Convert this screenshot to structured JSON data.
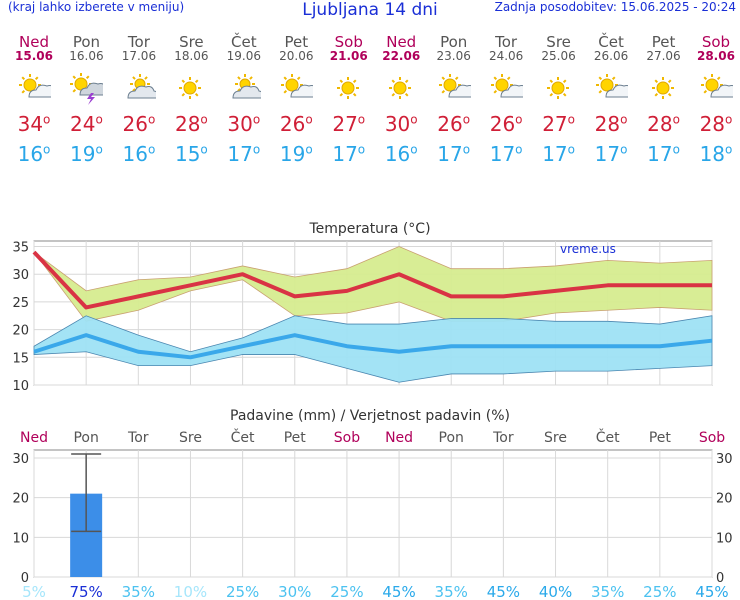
{
  "header": {
    "left_note": "(kraj lahko izberete v meniju)",
    "title": "Ljubljana 14 dni",
    "updated": "Zadnja posodobitev: 15.06.2025 - 20:24"
  },
  "days": [
    {
      "name": "Ned",
      "date": "15.06",
      "weekend": true,
      "icon": "partly-sunny-icon",
      "max": "34",
      "min": "16"
    },
    {
      "name": "Pon",
      "date": "16.06",
      "weekend": false,
      "icon": "thunderstorm-sun-icon",
      "max": "24",
      "min": "19"
    },
    {
      "name": "Tor",
      "date": "17.06",
      "weekend": false,
      "icon": "cloudy-sun-icon",
      "max": "26",
      "min": "16"
    },
    {
      "name": "Sre",
      "date": "18.06",
      "weekend": false,
      "icon": "sunny-icon",
      "max": "28",
      "min": "15"
    },
    {
      "name": "Čet",
      "date": "19.06",
      "weekend": false,
      "icon": "cloudy-sun-icon",
      "max": "30",
      "min": "17"
    },
    {
      "name": "Pet",
      "date": "20.06",
      "weekend": false,
      "icon": "partly-sunny-icon",
      "max": "26",
      "min": "19"
    },
    {
      "name": "Sob",
      "date": "21.06",
      "weekend": true,
      "icon": "sunny-icon",
      "max": "27",
      "min": "17"
    },
    {
      "name": "Ned",
      "date": "22.06",
      "weekend": true,
      "icon": "sunny-icon",
      "max": "30",
      "min": "16"
    },
    {
      "name": "Pon",
      "date": "23.06",
      "weekend": false,
      "icon": "partly-sunny-icon",
      "max": "26",
      "min": "17"
    },
    {
      "name": "Tor",
      "date": "24.06",
      "weekend": false,
      "icon": "partly-sunny-icon",
      "max": "26",
      "min": "17"
    },
    {
      "name": "Sre",
      "date": "25.06",
      "weekend": false,
      "icon": "sunny-icon",
      "max": "27",
      "min": "17"
    },
    {
      "name": "Čet",
      "date": "26.06",
      "weekend": false,
      "icon": "partly-sunny-icon",
      "max": "28",
      "min": "17"
    },
    {
      "name": "Pet",
      "date": "27.06",
      "weekend": false,
      "icon": "sunny-icon",
      "max": "28",
      "min": "17"
    },
    {
      "name": "Sob",
      "date": "28.06",
      "weekend": true,
      "icon": "partly-sunny-icon",
      "max": "28",
      "min": "18"
    }
  ],
  "degree_sign": "o",
  "chart_data": [
    {
      "type": "line",
      "title": "Temperatura (°C)",
      "watermark": "vreme.us",
      "x": [
        "Ned",
        "Pon",
        "Tor",
        "Sre",
        "Čet",
        "Pet",
        "Sob",
        "Ned",
        "Pon",
        "Tor",
        "Sre",
        "Čet",
        "Pet",
        "Sob"
      ],
      "ylim": [
        10,
        36
      ],
      "yticks": [
        10,
        15,
        20,
        25,
        30,
        35
      ],
      "grid": true,
      "series": [
        {
          "values": [
            34,
            24,
            26,
            28,
            30,
            26,
            27,
            30,
            26,
            26,
            27,
            28,
            28,
            28
          ],
          "color": "#d93344"
        },
        {
          "values": [
            16,
            19,
            16,
            15,
            17,
            19,
            17,
            16,
            17,
            17,
            17,
            17,
            17,
            18
          ],
          "color": "#3aa8ea"
        }
      ],
      "bands": [
        {
          "upper": [
            34,
            27,
            29,
            29.5,
            31.5,
            29.5,
            31,
            35,
            31,
            31,
            31.5,
            32.5,
            32,
            32.5
          ],
          "lower": [
            34,
            21.5,
            23.5,
            27,
            29,
            22.5,
            23,
            25,
            21.5,
            21.5,
            23,
            23.5,
            24,
            23.5
          ],
          "color": "#d6ec8f"
        },
        {
          "upper": [
            17,
            22.5,
            19,
            16,
            18.5,
            22.5,
            21,
            21,
            22,
            22,
            21.5,
            21.5,
            21,
            22.5
          ],
          "lower": [
            15.5,
            16,
            13.5,
            13.5,
            15.5,
            15.5,
            13,
            10.5,
            12,
            12,
            12.5,
            12.5,
            13,
            13.5
          ],
          "color": "#9ee1f4"
        }
      ]
    },
    {
      "type": "bar",
      "title": "Padavine (mm) / Verjetnost padavin (%)",
      "categories": [
        "Ned",
        "Pon",
        "Tor",
        "Sre",
        "Čet",
        "Pet",
        "Sob",
        "Ned",
        "Pon",
        "Tor",
        "Sre",
        "Čet",
        "Pet",
        "Sob"
      ],
      "weekend": [
        true,
        false,
        false,
        false,
        false,
        false,
        true,
        true,
        false,
        false,
        false,
        false,
        false,
        true
      ],
      "values": [
        0,
        21,
        0,
        0,
        0,
        0,
        0,
        0,
        0,
        0,
        0,
        0,
        0,
        0
      ],
      "error_high": [
        0,
        31,
        0,
        0,
        0,
        0,
        0,
        0,
        0,
        0,
        0,
        0,
        0,
        0
      ],
      "error_low": [
        0,
        11.5,
        0,
        0,
        0,
        0,
        0,
        0,
        0,
        0,
        0,
        0,
        0,
        0
      ],
      "ylim": [
        0,
        32
      ],
      "yticks": [
        0,
        10,
        20,
        30
      ],
      "grid": true,
      "probability": [
        "5%",
        "75%",
        "35%",
        "10%",
        "25%",
        "30%",
        "25%",
        "45%",
        "35%",
        "45%",
        "40%",
        "35%",
        "25%",
        "45%"
      ],
      "probability_colors": [
        "#a6e6fb",
        "#1a2fd6",
        "#4cc2f0",
        "#a6e6fb",
        "#4cc2f0",
        "#4cc2f0",
        "#4cc2f0",
        "#2aa9ea",
        "#4cc2f0",
        "#2aa9ea",
        "#2aa9ea",
        "#4cc2f0",
        "#4cc2f0",
        "#2aa9ea"
      ]
    }
  ]
}
